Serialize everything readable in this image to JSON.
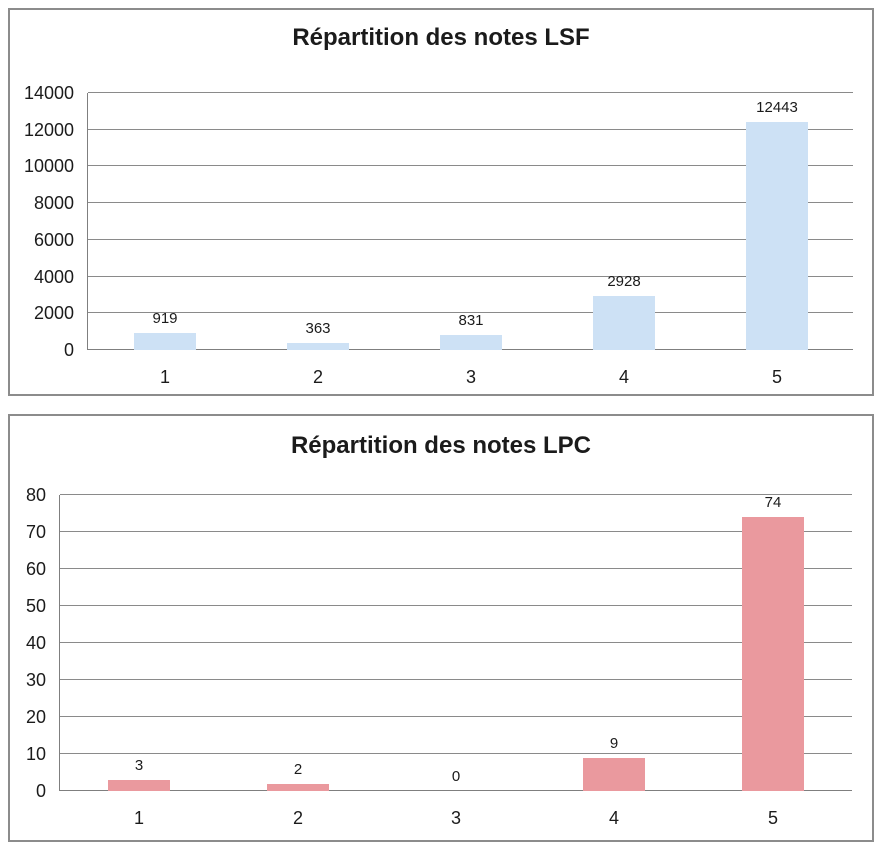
{
  "chart_data": [
    {
      "type": "bar",
      "title": "Répartition des notes LSF",
      "categories": [
        "1",
        "2",
        "3",
        "4",
        "5"
      ],
      "values": [
        919,
        363,
        831,
        2928,
        12443
      ],
      "data_labels": [
        "919",
        "363",
        "831",
        "2928",
        "12443"
      ],
      "xlabel": "",
      "ylabel": "",
      "ylim": [
        0,
        14000
      ],
      "ytick_step": 2000,
      "yticks": [
        0,
        2000,
        4000,
        6000,
        8000,
        10000,
        12000,
        14000
      ],
      "grid": true,
      "legend": "none",
      "bar_color": "#cde1f5",
      "grid_color": "#8a8a8a",
      "axis_color": "#7f7f7f",
      "border_color": "#8c8c8c",
      "text_color": "#1b1b1b"
    },
    {
      "type": "bar",
      "title": "Répartition des notes LPC",
      "categories": [
        "1",
        "2",
        "3",
        "4",
        "5"
      ],
      "values": [
        3,
        2,
        0,
        9,
        74
      ],
      "data_labels": [
        "3",
        "2",
        "0",
        "9",
        "74"
      ],
      "xlabel": "",
      "ylabel": "",
      "ylim": [
        0,
        80
      ],
      "ytick_step": 10,
      "yticks": [
        0,
        10,
        20,
        30,
        40,
        50,
        60,
        70,
        80
      ],
      "grid": true,
      "legend": "none",
      "bar_color": "#ea999e",
      "grid_color": "#8a8a8a",
      "axis_color": "#7f7f7f",
      "border_color": "#8c8c8c",
      "text_color": "#1b1b1b"
    }
  ]
}
